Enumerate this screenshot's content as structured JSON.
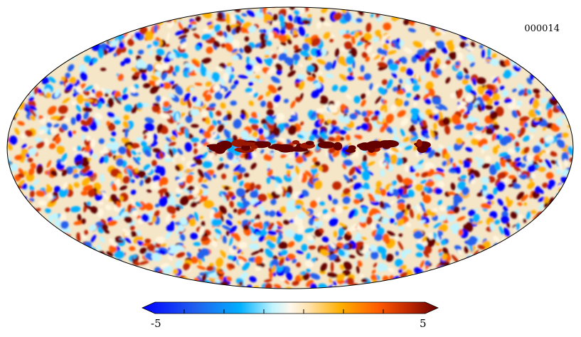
{
  "map": {
    "id_label": "000014",
    "projection": "mollweide",
    "colormap": "planck",
    "colors": [
      "#0000ff",
      "#2060ee",
      "#00b0ff",
      "#bff4ff",
      "#fff4dd",
      "#ffb000",
      "#ff5a00",
      "#c02800",
      "#640000"
    ]
  },
  "colorbar": {
    "min_label": "-5",
    "max_label": "5",
    "range": [
      -5,
      5
    ]
  }
}
